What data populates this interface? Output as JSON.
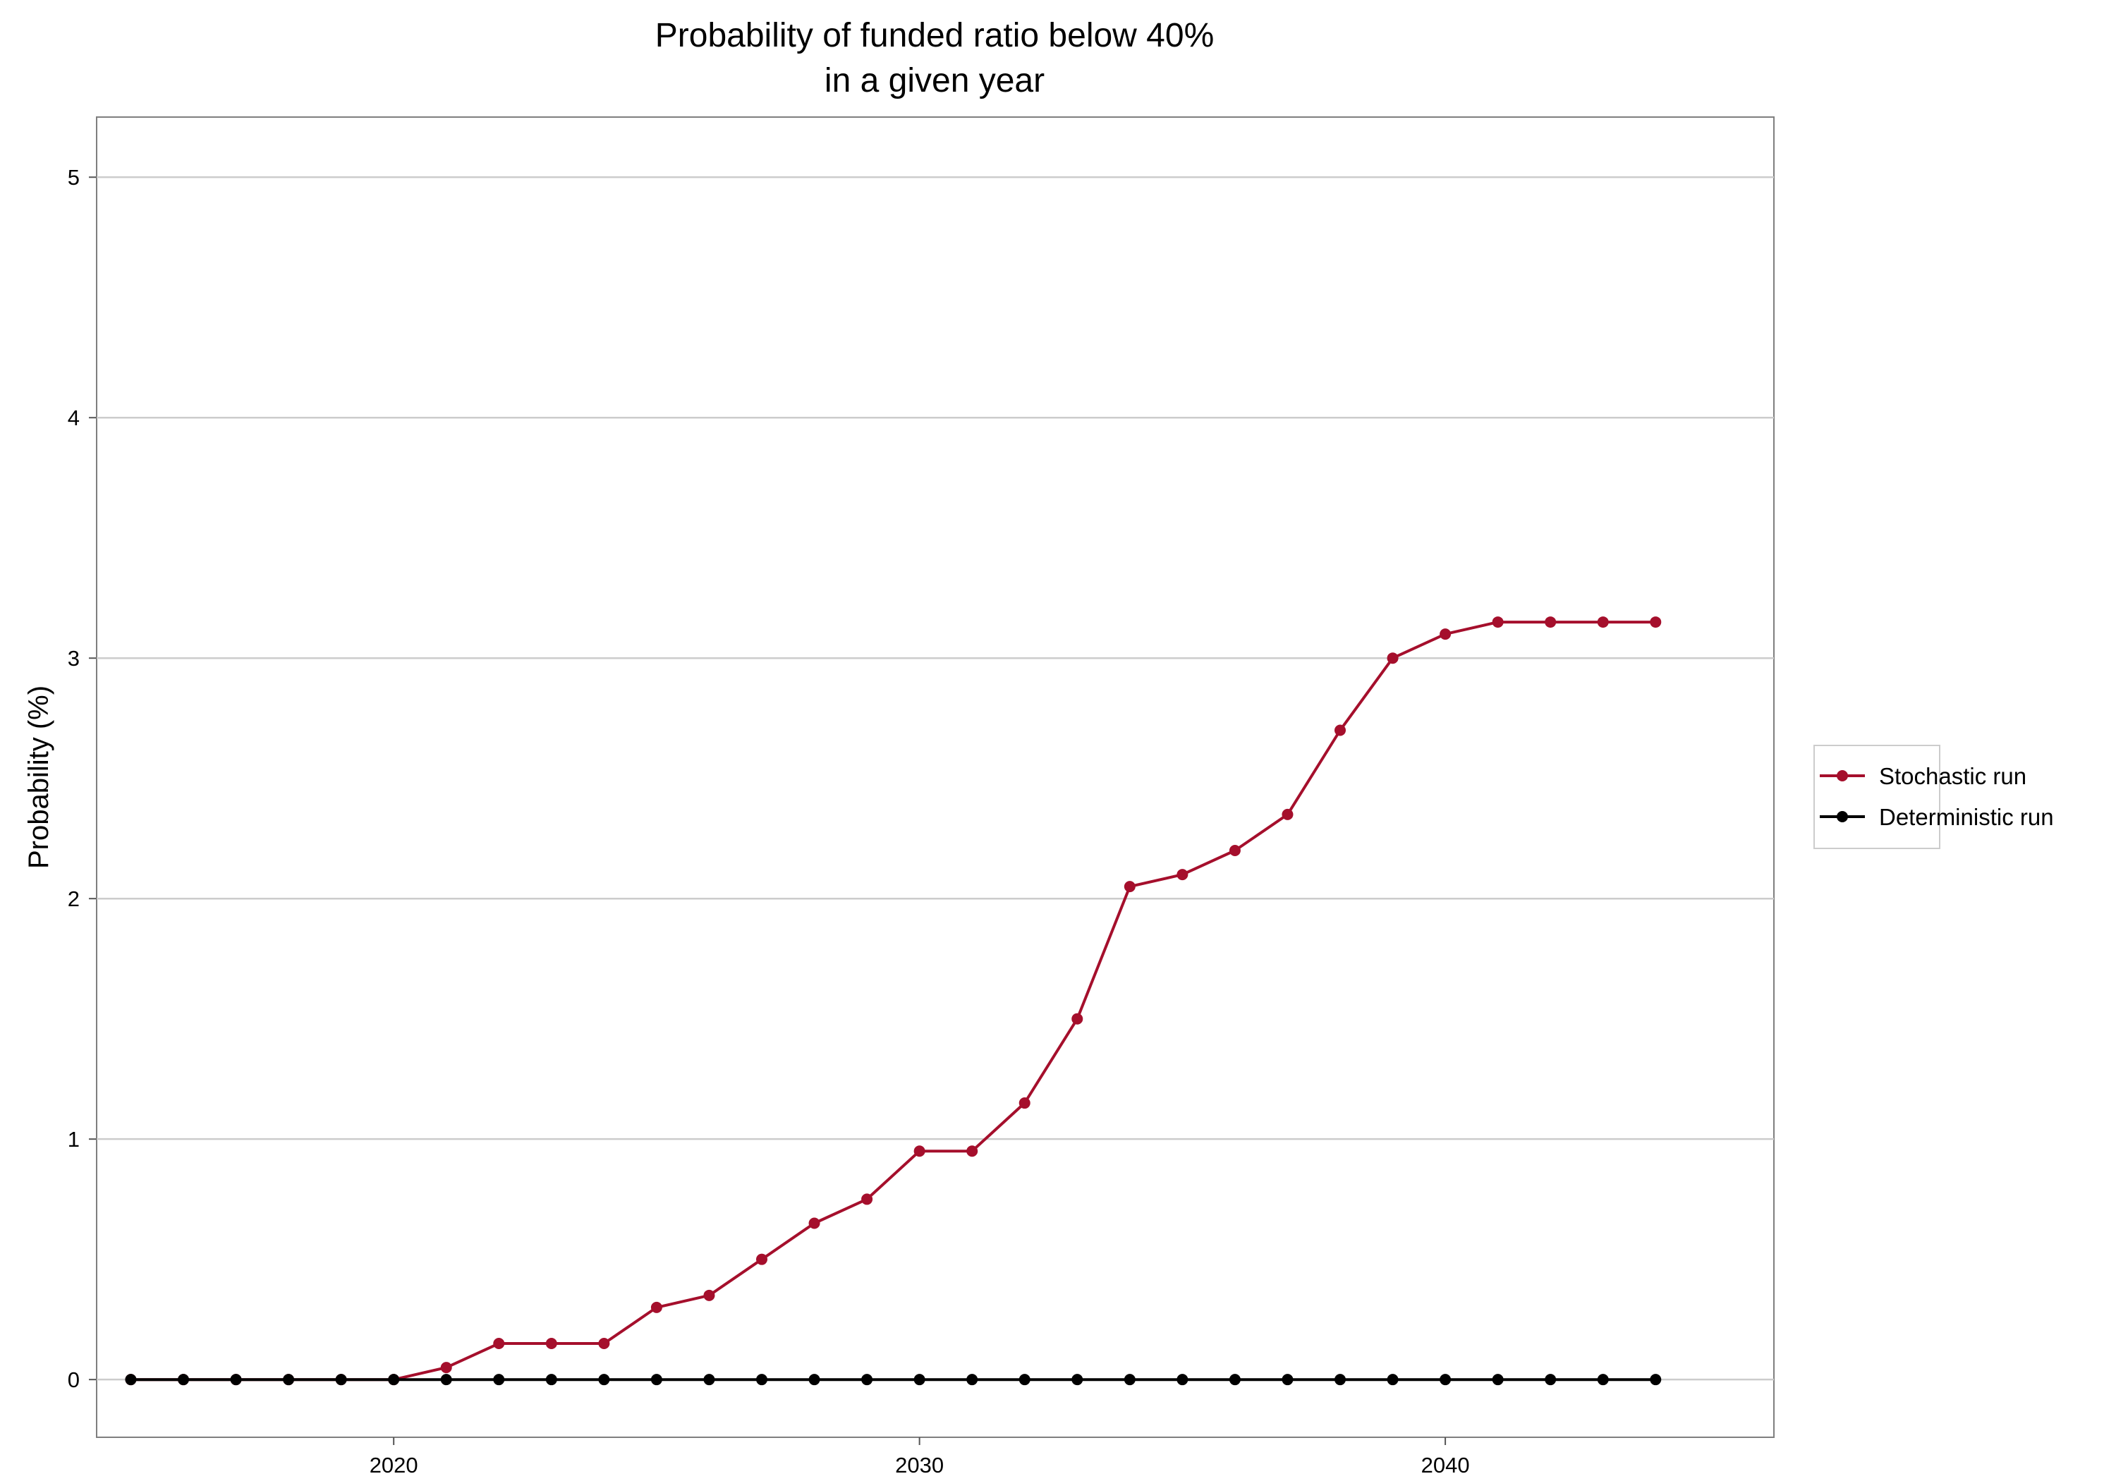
{
  "chart_data": {
    "type": "line",
    "title": [
      "Probability of funded ratio below 40%",
      "in a given year"
    ],
    "xlabel": "",
    "ylabel": "Probability (%)",
    "xlim": [
      2014.35,
      2046.25
    ],
    "ylim": [
      -0.24,
      5.25
    ],
    "x_ticks": [
      2020,
      2030,
      2040
    ],
    "y_ticks": [
      0,
      1,
      2,
      3,
      4,
      5
    ],
    "grid": "horizontal",
    "legend_position": "right",
    "x": [
      2015,
      2016,
      2017,
      2018,
      2019,
      2020,
      2021,
      2022,
      2023,
      2024,
      2025,
      2026,
      2027,
      2028,
      2029,
      2030,
      2031,
      2032,
      2033,
      2034,
      2035,
      2036,
      2037,
      2038,
      2039,
      2040,
      2041,
      2042,
      2043,
      2044
    ],
    "series": [
      {
        "name": "Stochastic run",
        "color": "#a50f2c",
        "values": [
          0,
          0,
          0,
          0,
          0,
          0,
          0.05,
          0.15,
          0.15,
          0.15,
          0.3,
          0.35,
          0.5,
          0.65,
          0.75,
          0.95,
          0.95,
          1.15,
          1.5,
          2.05,
          2.1,
          2.2,
          2.35,
          2.7,
          3.0,
          3.1,
          3.15,
          3.15,
          3.15,
          3.15
        ]
      },
      {
        "name": "Deterministic run",
        "color": "#000000",
        "values": [
          0,
          0,
          0,
          0,
          0,
          0,
          0,
          0,
          0,
          0,
          0,
          0,
          0,
          0,
          0,
          0,
          0,
          0,
          0,
          0,
          0,
          0,
          0,
          0,
          0,
          0,
          0,
          0,
          0,
          0
        ]
      }
    ]
  }
}
